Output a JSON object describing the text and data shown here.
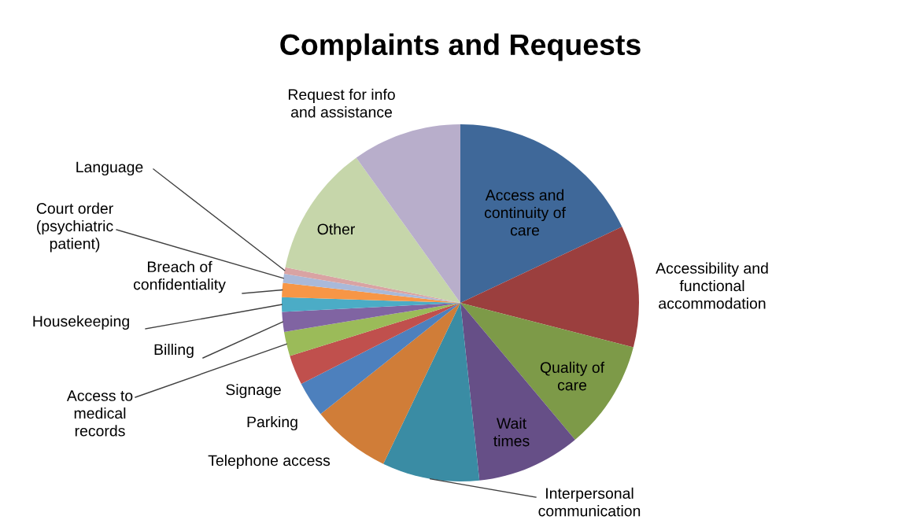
{
  "chart_data": {
    "type": "pie",
    "title": "Complaints and Requests",
    "categories": [
      "Access and\ncontinuity of\ncare",
      "Accessibility and\nfunctional\naccommodation",
      "Quality of\ncare",
      "Wait\ntimes",
      "Interpersonal\ncommunication",
      "Telephone access",
      "Parking",
      "Signage",
      "Access to\nmedical\nrecords",
      "Billing",
      "Housekeeping",
      "Breach of\nconfidentiality",
      "Court order\n(psychiatric\npatient)",
      "Language",
      "Other",
      "Request for info\nand assistance"
    ],
    "values": [
      18.0,
      11.0,
      9.9,
      9.4,
      8.8,
      7.2,
      3.2,
      2.7,
      2.2,
      1.8,
      1.3,
      1.3,
      0.8,
      0.6,
      11.9,
      9.9
    ],
    "colors": [
      "#3f6899",
      "#9b3f3e",
      "#7d9a48",
      "#664f87",
      "#3a8ca4",
      "#d07d38",
      "#4d80bd",
      "#c0504d",
      "#9bbb59",
      "#8064a2",
      "#4bacc6",
      "#f79646",
      "#a9b9d9",
      "#d9a3a3",
      "#c6d6aa",
      "#b8aecb"
    ],
    "legend": false
  }
}
